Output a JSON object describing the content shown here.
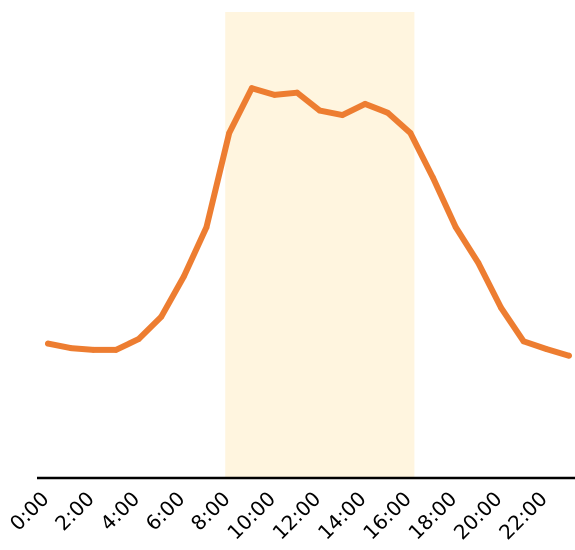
{
  "chart_data": {
    "type": "line",
    "x": [
      "0:00",
      "1:00",
      "2:00",
      "3:00",
      "4:00",
      "5:00",
      "6:00",
      "7:00",
      "8:00",
      "9:00",
      "10:00",
      "11:00",
      "12:00",
      "13:00",
      "14:00",
      "15:00",
      "16:00",
      "17:00",
      "18:00",
      "19:00",
      "20:00",
      "21:00",
      "22:00",
      "23:00"
    ],
    "xtick_labels": [
      "0:00",
      "2:00",
      "4:00",
      "6:00",
      "8:00",
      "10:00",
      "12:00",
      "14:00",
      "16:00",
      "18:00",
      "20:00",
      "22:00"
    ],
    "series": [
      {
        "values": [
          30,
          29,
          28.6,
          28.6,
          31,
          36,
          45,
          56,
          77,
          87,
          85.5,
          86,
          82,
          81,
          83.5,
          81.5,
          77,
          67,
          56,
          48,
          38,
          30.5,
          28.8,
          27.3
        ]
      }
    ],
    "ylim": [
      0,
      104
    ],
    "xlabel": "",
    "ylabel": "",
    "title": "",
    "highlight_band": {
      "x_start": "8:00",
      "x_end": "16:00"
    },
    "grid": false,
    "legend": "none",
    "colors": {
      "line": "#ED7D31",
      "band": "#FFF5DF",
      "axis": "#000000"
    }
  }
}
